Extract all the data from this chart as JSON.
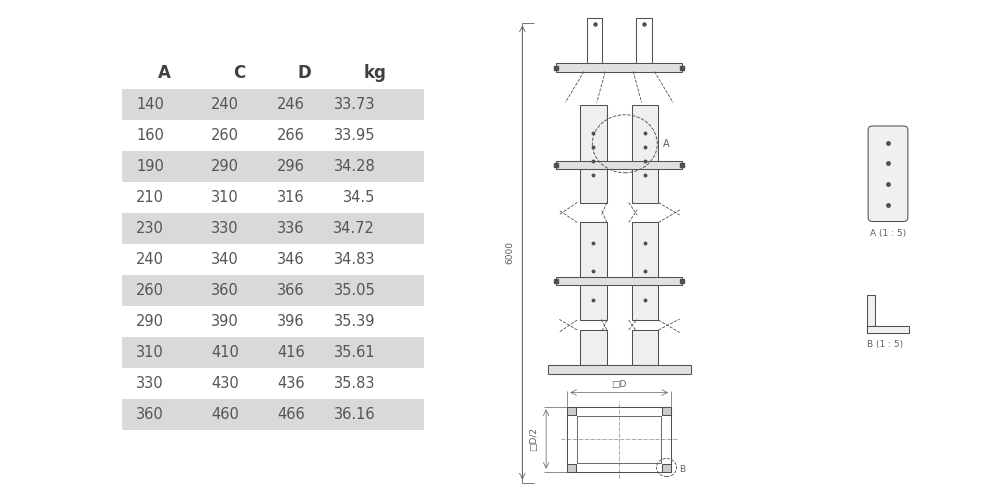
{
  "table_headers": [
    "A",
    "C",
    "D",
    "kg"
  ],
  "table_rows": [
    [
      "140",
      "240",
      "246",
      "33.73"
    ],
    [
      "160",
      "260",
      "266",
      "33.95"
    ],
    [
      "190",
      "290",
      "296",
      "34.28"
    ],
    [
      "210",
      "310",
      "316",
      "34.5"
    ],
    [
      "230",
      "330",
      "336",
      "34.72"
    ],
    [
      "240",
      "340",
      "346",
      "34.83"
    ],
    [
      "260",
      "360",
      "366",
      "35.05"
    ],
    [
      "290",
      "390",
      "396",
      "35.39"
    ],
    [
      "310",
      "410",
      "416",
      "35.61"
    ],
    [
      "330",
      "430",
      "436",
      "35.83"
    ],
    [
      "360",
      "460",
      "466",
      "36.16"
    ]
  ],
  "shaded_rows": [
    0,
    2,
    4,
    6,
    8,
    10
  ],
  "row_bg": "#d9d9d9",
  "header_color": "#404040",
  "text_color": "#555555",
  "line_color": "#505050",
  "dim_color": "#606060",
  "bg_color": "#ffffff"
}
